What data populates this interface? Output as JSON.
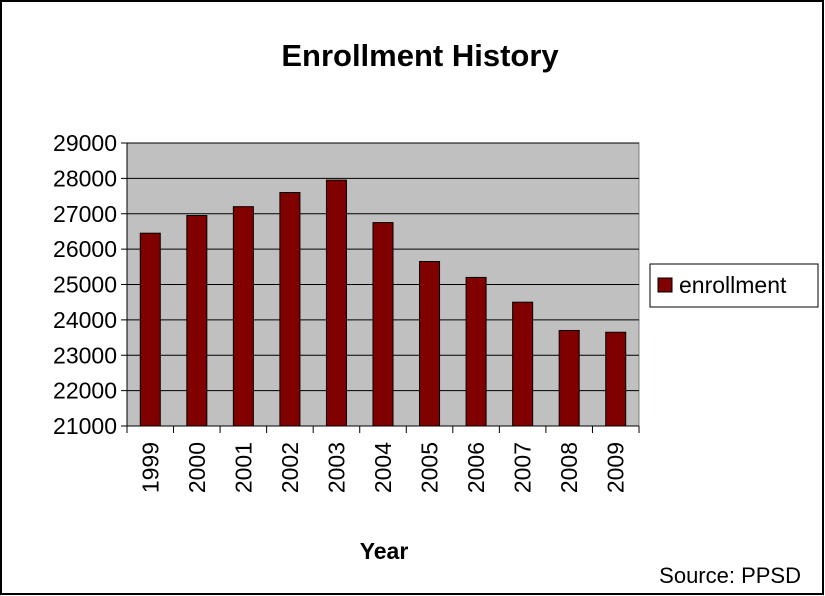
{
  "chart_data": {
    "type": "bar",
    "title": "Enrollment History",
    "xlabel": "Year",
    "ylabel": "",
    "categories": [
      "1999",
      "2000",
      "2001",
      "2002",
      "2003",
      "2004",
      "2005",
      "2006",
      "2007",
      "2008",
      "2009"
    ],
    "series": [
      {
        "name": "enrollment",
        "values": [
          26450,
          26950,
          27200,
          27600,
          27950,
          26750,
          25650,
          25200,
          24500,
          23700,
          23650
        ]
      }
    ],
    "ylim": [
      21000,
      29000
    ],
    "yticks": [
      21000,
      22000,
      23000,
      24000,
      25000,
      26000,
      27000,
      28000,
      29000
    ],
    "grid": true,
    "legend_position": "right",
    "source_note": "Source: PPSD"
  },
  "colors": {
    "bar_fill": "#800000",
    "bar_stroke": "#000000",
    "plot_background": "#c0c0c0",
    "gridline": "#000000",
    "frame": "#000000",
    "page_background": "#ffffff"
  }
}
